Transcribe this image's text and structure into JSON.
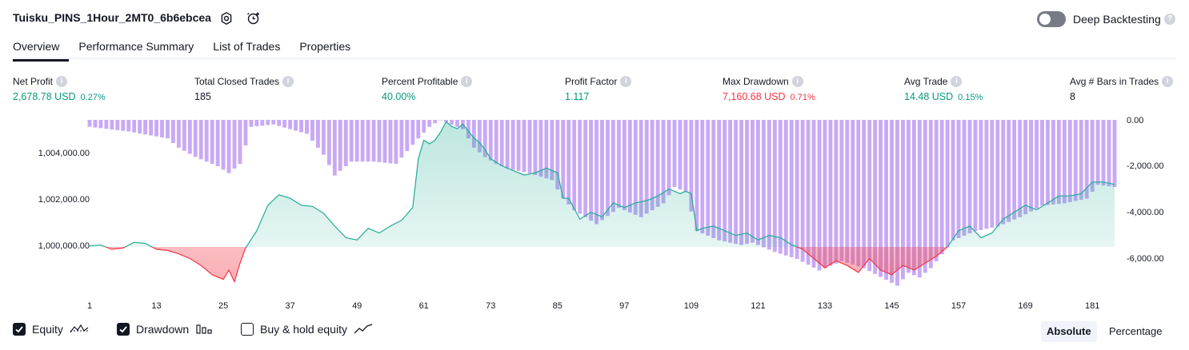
{
  "header": {
    "title": "Tuisku_PINS_1Hour_2MT0_6b6ebcea",
    "deep_backtesting_label": "Deep Backtesting",
    "deep_backtesting_enabled": false
  },
  "tabs": [
    {
      "label": "Overview",
      "active": true
    },
    {
      "label": "Performance Summary",
      "active": false
    },
    {
      "label": "List of Trades",
      "active": false
    },
    {
      "label": "Properties",
      "active": false
    }
  ],
  "metrics": [
    {
      "label": "Net Profit",
      "value": "2,678.78 USD",
      "pct": "0.27%",
      "color": "green"
    },
    {
      "label": "Total Closed Trades",
      "value": "185",
      "pct": "",
      "color": "dark"
    },
    {
      "label": "Percent Profitable",
      "value": "40.00%",
      "pct": "",
      "color": "green"
    },
    {
      "label": "Profit Factor",
      "value": "1.117",
      "pct": "",
      "color": "green"
    },
    {
      "label": "Max Drawdown",
      "value": "7,160.68 USD",
      "pct": "0.71%",
      "color": "red"
    },
    {
      "label": "Avg Trade",
      "value": "14.48 USD",
      "pct": "0.15%",
      "color": "green"
    },
    {
      "label": "Avg # Bars in Trades",
      "value": "8",
      "pct": "",
      "color": "dark"
    }
  ],
  "legend": {
    "equity_label": "Equity",
    "equity_checked": true,
    "drawdown_label": "Drawdown",
    "drawdown_checked": true,
    "buyhold_label": "Buy & hold equity",
    "buyhold_checked": false
  },
  "scale_toggle": {
    "absolute_label": "Absolute",
    "percentage_label": "Percentage",
    "selected": "Absolute"
  },
  "colors": {
    "equity_line": "#22ab94",
    "equity_fill_pos": "#22ab94",
    "equity_fill_neg": "#f23645",
    "drawdown_bar": "#c9a9f5"
  },
  "chart_data": {
    "type": "area",
    "left_axis": {
      "ticks": [
        1000000,
        1002000,
        1004000
      ],
      "tick_labels": [
        "1,000,000.00",
        "1,002,000.00",
        "1,004,000.00"
      ],
      "baseline": 1000000
    },
    "right_axis": {
      "ticks": [
        0,
        -2000,
        -4000,
        -6000
      ],
      "tick_labels": [
        "0.00",
        "-2,000.00",
        "-4,000.00",
        "-6,000.00"
      ]
    },
    "x_ticks": [
      1,
      13,
      25,
      37,
      49,
      61,
      73,
      85,
      97,
      109,
      121,
      133,
      145,
      157,
      169,
      181
    ],
    "x_range": [
      1,
      185
    ],
    "series": [
      {
        "name": "Equity",
        "x": [
          1,
          3,
          5,
          7,
          9,
          11,
          13,
          15,
          17,
          19,
          21,
          23,
          25,
          26,
          27,
          28,
          29,
          31,
          33,
          35,
          37,
          39,
          41,
          43,
          45,
          47,
          49,
          51,
          53,
          55,
          57,
          59,
          60,
          61,
          62,
          63,
          64,
          65,
          66,
          67,
          68,
          69,
          70,
          71,
          72,
          73,
          75,
          77,
          79,
          81,
          83,
          85,
          86,
          87,
          89,
          91,
          93,
          95,
          97,
          99,
          101,
          103,
          105,
          107,
          108,
          109,
          110,
          111,
          113,
          115,
          117,
          119,
          121,
          123,
          125,
          127,
          129,
          131,
          133,
          135,
          137,
          139,
          141,
          143,
          145,
          147,
          149,
          151,
          153,
          155,
          157,
          159,
          161,
          163,
          165,
          167,
          169,
          171,
          173,
          175,
          177,
          179,
          181,
          183,
          185
        ],
        "values": [
          1000050,
          1000080,
          999900,
          999950,
          1000200,
          1000150,
          999900,
          999850,
          999700,
          999500,
          999200,
          998800,
          998600,
          999000,
          998500,
          999300,
          999950,
          1000700,
          1001800,
          1002250,
          1002100,
          1001800,
          1001750,
          1001450,
          1000900,
          1000400,
          1000300,
          1000800,
          1000600,
          1000900,
          1001150,
          1001700,
          1003800,
          1004600,
          1004450,
          1004600,
          1004950,
          1005400,
          1005200,
          1005100,
          1005300,
          1005000,
          1004700,
          1004500,
          1004200,
          1003800,
          1003500,
          1003300,
          1003100,
          1003200,
          1003400,
          1003200,
          1002100,
          1002100,
          1001200,
          1001500,
          1001300,
          1001900,
          1001700,
          1001900,
          1002000,
          1002200,
          1002500,
          1002300,
          1002400,
          1002300,
          1000700,
          1000800,
          1000900,
          1000700,
          1000500,
          1000600,
          1000300,
          1000500,
          1000400,
          1000100,
          999900,
          999500,
          999100,
          999400,
          999200,
          998900,
          999500,
          999000,
          998800,
          999200,
          999000,
          999300,
          999600,
          1000000,
          1000700,
          1000900,
          1000400,
          1000600,
          1001200,
          1001500,
          1001800,
          1001600,
          1001900,
          1002200,
          1002200,
          1002300,
          1002800,
          1002800,
          1002700
        ]
      },
      {
        "name": "Drawdown",
        "x": [
          1,
          8,
          15,
          17,
          20,
          24,
          26,
          28,
          30,
          34,
          40,
          43,
          45,
          48,
          52,
          56,
          60,
          62,
          64,
          66,
          68,
          70,
          72,
          74,
          76,
          80,
          84,
          86,
          88,
          92,
          96,
          100,
          104,
          106,
          108,
          110,
          114,
          118,
          120,
          124,
          128,
          132,
          136,
          140,
          144,
          146,
          148,
          150,
          152,
          154,
          156,
          160,
          164,
          168,
          172,
          176,
          180,
          182,
          185
        ],
        "values": [
          -300,
          -500,
          -800,
          -1200,
          -1600,
          -2000,
          -2300,
          -1900,
          -300,
          -200,
          -600,
          -1500,
          -2400,
          -1800,
          -1800,
          -1900,
          -800,
          -300,
          0,
          -200,
          -400,
          -1200,
          -1600,
          -1900,
          -2100,
          -2300,
          -2600,
          -3400,
          -3900,
          -4500,
          -3800,
          -4200,
          -3600,
          -2900,
          -3100,
          -4800,
          -5200,
          -5400,
          -5300,
          -5700,
          -6000,
          -6500,
          -6100,
          -6400,
          -6900,
          -7160,
          -6600,
          -6800,
          -6400,
          -5800,
          -5200,
          -4800,
          -4600,
          -4200,
          -3700,
          -3600,
          -3400,
          -2800,
          -2900
        ]
      }
    ]
  }
}
